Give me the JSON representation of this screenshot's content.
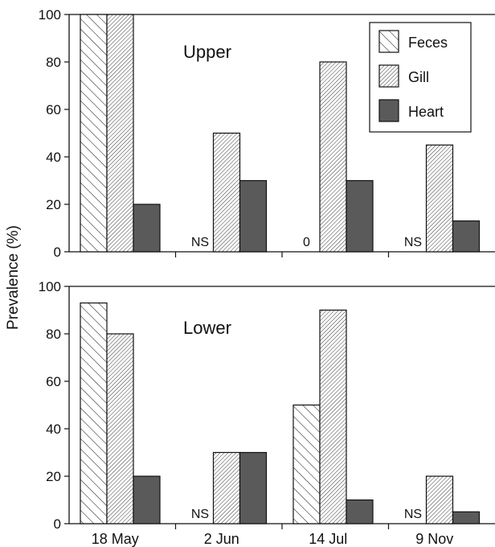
{
  "chart_data": [
    {
      "type": "bar",
      "panel_label": "Upper",
      "categories": [
        "18 May",
        "2 Jun",
        "14 Jul",
        "9 Nov"
      ],
      "series": [
        {
          "name": "Feces",
          "values": [
            100,
            null,
            0,
            null
          ]
        },
        {
          "name": "Gill",
          "values": [
            100,
            50,
            80,
            45
          ]
        },
        {
          "name": "Heart",
          "values": [
            20,
            30,
            30,
            13
          ]
        }
      ],
      "annotations": [
        {
          "series": "Feces",
          "category": "2 Jun",
          "text": "NS"
        },
        {
          "series": "Feces",
          "category": "14 Jul",
          "text": "0"
        },
        {
          "series": "Feces",
          "category": "9 Nov",
          "text": "NS"
        }
      ],
      "ylim": [
        0,
        100
      ],
      "yticks": [
        "0",
        "20",
        "40",
        "60",
        "80",
        "100"
      ],
      "legend": "top-right"
    },
    {
      "type": "bar",
      "panel_label": "Lower",
      "categories": [
        "18 May",
        "2 Jun",
        "14 Jul",
        "9 Nov"
      ],
      "series": [
        {
          "name": "Feces",
          "values": [
            93,
            null,
            50,
            null
          ]
        },
        {
          "name": "Gill",
          "values": [
            80,
            30,
            90,
            20
          ]
        },
        {
          "name": "Heart",
          "values": [
            20,
            30,
            10,
            5
          ]
        }
      ],
      "annotations": [
        {
          "series": "Feces",
          "category": "2 Jun",
          "text": "NS"
        },
        {
          "series": "Feces",
          "category": "9 Nov",
          "text": "NS"
        }
      ],
      "ylim": [
        0,
        100
      ],
      "yticks": [
        "0",
        "20",
        "40",
        "60",
        "80",
        "100"
      ]
    }
  ],
  "ylabel": "Prevalence (%)",
  "colors": {
    "heart": "#5a5a5a",
    "stroke": "#111111",
    "hatch": "#222222"
  }
}
